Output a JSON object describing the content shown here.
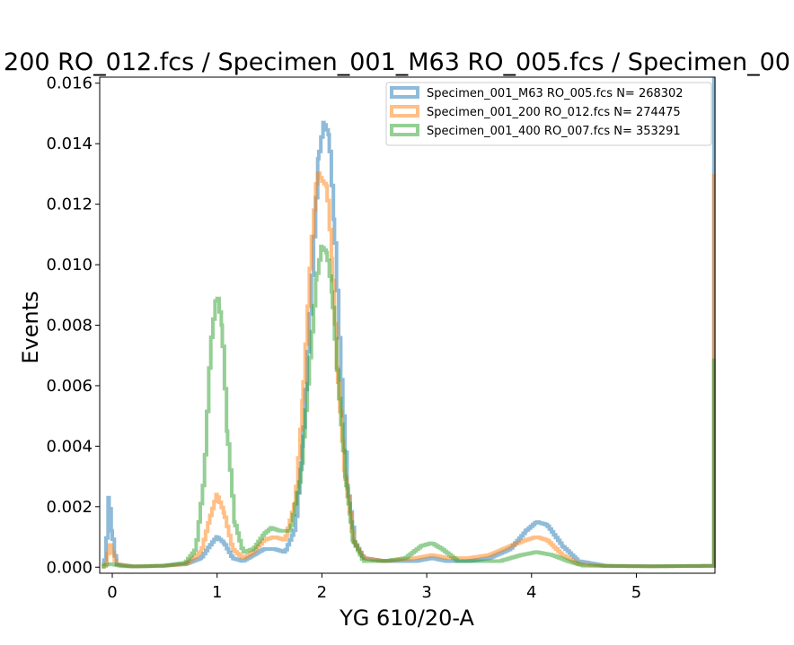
{
  "chart_data": {
    "type": "histogram-step",
    "title": "200 RO_012.fcs / Specimen_001_M63 RO_005.fcs / Specimen_00",
    "xlabel": "YG 610/20-A",
    "ylabel": "Events",
    "xlim": [
      -0.12,
      5.75
    ],
    "ylim": [
      -0.0002,
      0.0162
    ],
    "xticks": [
      0,
      1,
      2,
      3,
      4,
      5
    ],
    "xtick_labels": [
      "0",
      "1",
      "2",
      "3",
      "4",
      "5"
    ],
    "yticks": [
      0,
      0.002,
      0.004,
      0.006,
      0.008,
      0.01,
      0.012,
      0.014,
      0.016
    ],
    "ytick_labels": [
      "0.000",
      "0.002",
      "0.004",
      "0.006",
      "0.008",
      "0.010",
      "0.012",
      "0.014",
      "0.016"
    ],
    "legend_position": "top-right",
    "series": [
      {
        "name": "Specimen_001_M63 RO_005.fcs  N= 268302",
        "color": "#1f77b4",
        "points": [
          [
            -0.1,
            5e-05
          ],
          [
            -0.06,
            0.0003
          ],
          [
            -0.03,
            0.0023
          ],
          [
            0.0,
            0.0012
          ],
          [
            0.04,
            0.0001
          ],
          [
            0.2,
            2e-05
          ],
          [
            0.5,
            5e-05
          ],
          [
            0.7,
            0.0001
          ],
          [
            0.85,
            0.0003
          ],
          [
            0.93,
            0.0007
          ],
          [
            1.0,
            0.001
          ],
          [
            1.07,
            0.0008
          ],
          [
            1.15,
            0.0003
          ],
          [
            1.25,
            0.0002
          ],
          [
            1.35,
            0.0004
          ],
          [
            1.45,
            0.0006
          ],
          [
            1.55,
            0.0006
          ],
          [
            1.65,
            0.0005
          ],
          [
            1.75,
            0.0013
          ],
          [
            1.82,
            0.004
          ],
          [
            1.9,
            0.009
          ],
          [
            1.97,
            0.0135
          ],
          [
            2.02,
            0.0147
          ],
          [
            2.07,
            0.0143
          ],
          [
            2.12,
            0.0115
          ],
          [
            2.18,
            0.0068
          ],
          [
            2.25,
            0.0026
          ],
          [
            2.32,
            0.0008
          ],
          [
            2.4,
            0.0003
          ],
          [
            2.6,
            0.0002
          ],
          [
            2.9,
            0.0002
          ],
          [
            3.05,
            0.0003
          ],
          [
            3.2,
            0.0002
          ],
          [
            3.4,
            0.0002
          ],
          [
            3.6,
            0.0003
          ],
          [
            3.8,
            0.0006
          ],
          [
            3.95,
            0.0012
          ],
          [
            4.05,
            0.0015
          ],
          [
            4.15,
            0.0014
          ],
          [
            4.3,
            0.0007
          ],
          [
            4.45,
            0.0002
          ],
          [
            4.7,
            5e-05
          ],
          [
            5.2,
            3e-05
          ],
          [
            5.7,
            5e-05
          ],
          [
            5.74,
            0.0162
          ]
        ]
      },
      {
        "name": "Specimen_001_200 RO_012.fcs  N= 274475",
        "color": "#ff7f0e",
        "points": [
          [
            -0.1,
            0.0
          ],
          [
            -0.05,
            0.0001
          ],
          [
            -0.03,
            0.0008
          ],
          [
            0.0,
            0.0006
          ],
          [
            0.04,
            0.0001
          ],
          [
            0.2,
            2e-05
          ],
          [
            0.5,
            5e-05
          ],
          [
            0.7,
            0.0001
          ],
          [
            0.85,
            0.0005
          ],
          [
            0.93,
            0.0016
          ],
          [
            1.0,
            0.0024
          ],
          [
            1.07,
            0.0018
          ],
          [
            1.15,
            0.0006
          ],
          [
            1.25,
            0.0003
          ],
          [
            1.35,
            0.0005
          ],
          [
            1.45,
            0.0009
          ],
          [
            1.55,
            0.001
          ],
          [
            1.65,
            0.0009
          ],
          [
            1.75,
            0.0022
          ],
          [
            1.82,
            0.0055
          ],
          [
            1.9,
            0.0105
          ],
          [
            1.96,
            0.0131
          ],
          [
            2.0,
            0.0128
          ],
          [
            2.05,
            0.0126
          ],
          [
            2.1,
            0.0102
          ],
          [
            2.15,
            0.0066
          ],
          [
            2.22,
            0.0032
          ],
          [
            2.3,
            0.0009
          ],
          [
            2.4,
            0.0003
          ],
          [
            2.6,
            0.0002
          ],
          [
            2.9,
            0.0003
          ],
          [
            3.05,
            0.0004
          ],
          [
            3.2,
            0.0003
          ],
          [
            3.4,
            0.0003
          ],
          [
            3.6,
            0.0004
          ],
          [
            3.8,
            0.0007
          ],
          [
            3.95,
            0.0009
          ],
          [
            4.05,
            0.001
          ],
          [
            4.15,
            0.0009
          ],
          [
            4.3,
            0.0004
          ],
          [
            4.45,
            0.0001
          ],
          [
            4.7,
            4e-05
          ],
          [
            5.2,
            3e-05
          ],
          [
            5.7,
            4e-05
          ],
          [
            5.74,
            0.013
          ]
        ]
      },
      {
        "name": "Specimen_001_400 RO_007.fcs  N= 353291",
        "color": "#2ca02c",
        "points": [
          [
            -0.1,
            0.0
          ],
          [
            -0.04,
            0.0001
          ],
          [
            0.0,
            0.0001
          ],
          [
            0.1,
            3e-05
          ],
          [
            0.3,
            3e-05
          ],
          [
            0.5,
            5e-05
          ],
          [
            0.7,
            0.00015
          ],
          [
            0.8,
            0.0006
          ],
          [
            0.88,
            0.003
          ],
          [
            0.94,
            0.0073
          ],
          [
            1.0,
            0.0091
          ],
          [
            1.05,
            0.008
          ],
          [
            1.1,
            0.0045
          ],
          [
            1.17,
            0.0015
          ],
          [
            1.25,
            0.0005
          ],
          [
            1.35,
            0.0006
          ],
          [
            1.45,
            0.0011
          ],
          [
            1.52,
            0.0013
          ],
          [
            1.6,
            0.0012
          ],
          [
            1.7,
            0.0012
          ],
          [
            1.8,
            0.003
          ],
          [
            1.88,
            0.0065
          ],
          [
            1.95,
            0.0095
          ],
          [
            2.0,
            0.0106
          ],
          [
            2.05,
            0.0104
          ],
          [
            2.1,
            0.0091
          ],
          [
            2.16,
            0.006
          ],
          [
            2.23,
            0.003
          ],
          [
            2.3,
            0.0009
          ],
          [
            2.4,
            0.0002
          ],
          [
            2.6,
            0.0002
          ],
          [
            2.8,
            0.0003
          ],
          [
            2.95,
            0.0007
          ],
          [
            3.05,
            0.0008
          ],
          [
            3.15,
            0.0006
          ],
          [
            3.3,
            0.0002
          ],
          [
            3.5,
            0.0002
          ],
          [
            3.7,
            0.0002
          ],
          [
            3.9,
            0.0004
          ],
          [
            4.05,
            0.0005
          ],
          [
            4.2,
            0.0004
          ],
          [
            4.35,
            0.0002
          ],
          [
            4.5,
            5e-05
          ],
          [
            5.0,
            3e-05
          ],
          [
            5.7,
            4e-05
          ],
          [
            5.74,
            0.0069
          ]
        ]
      }
    ]
  }
}
